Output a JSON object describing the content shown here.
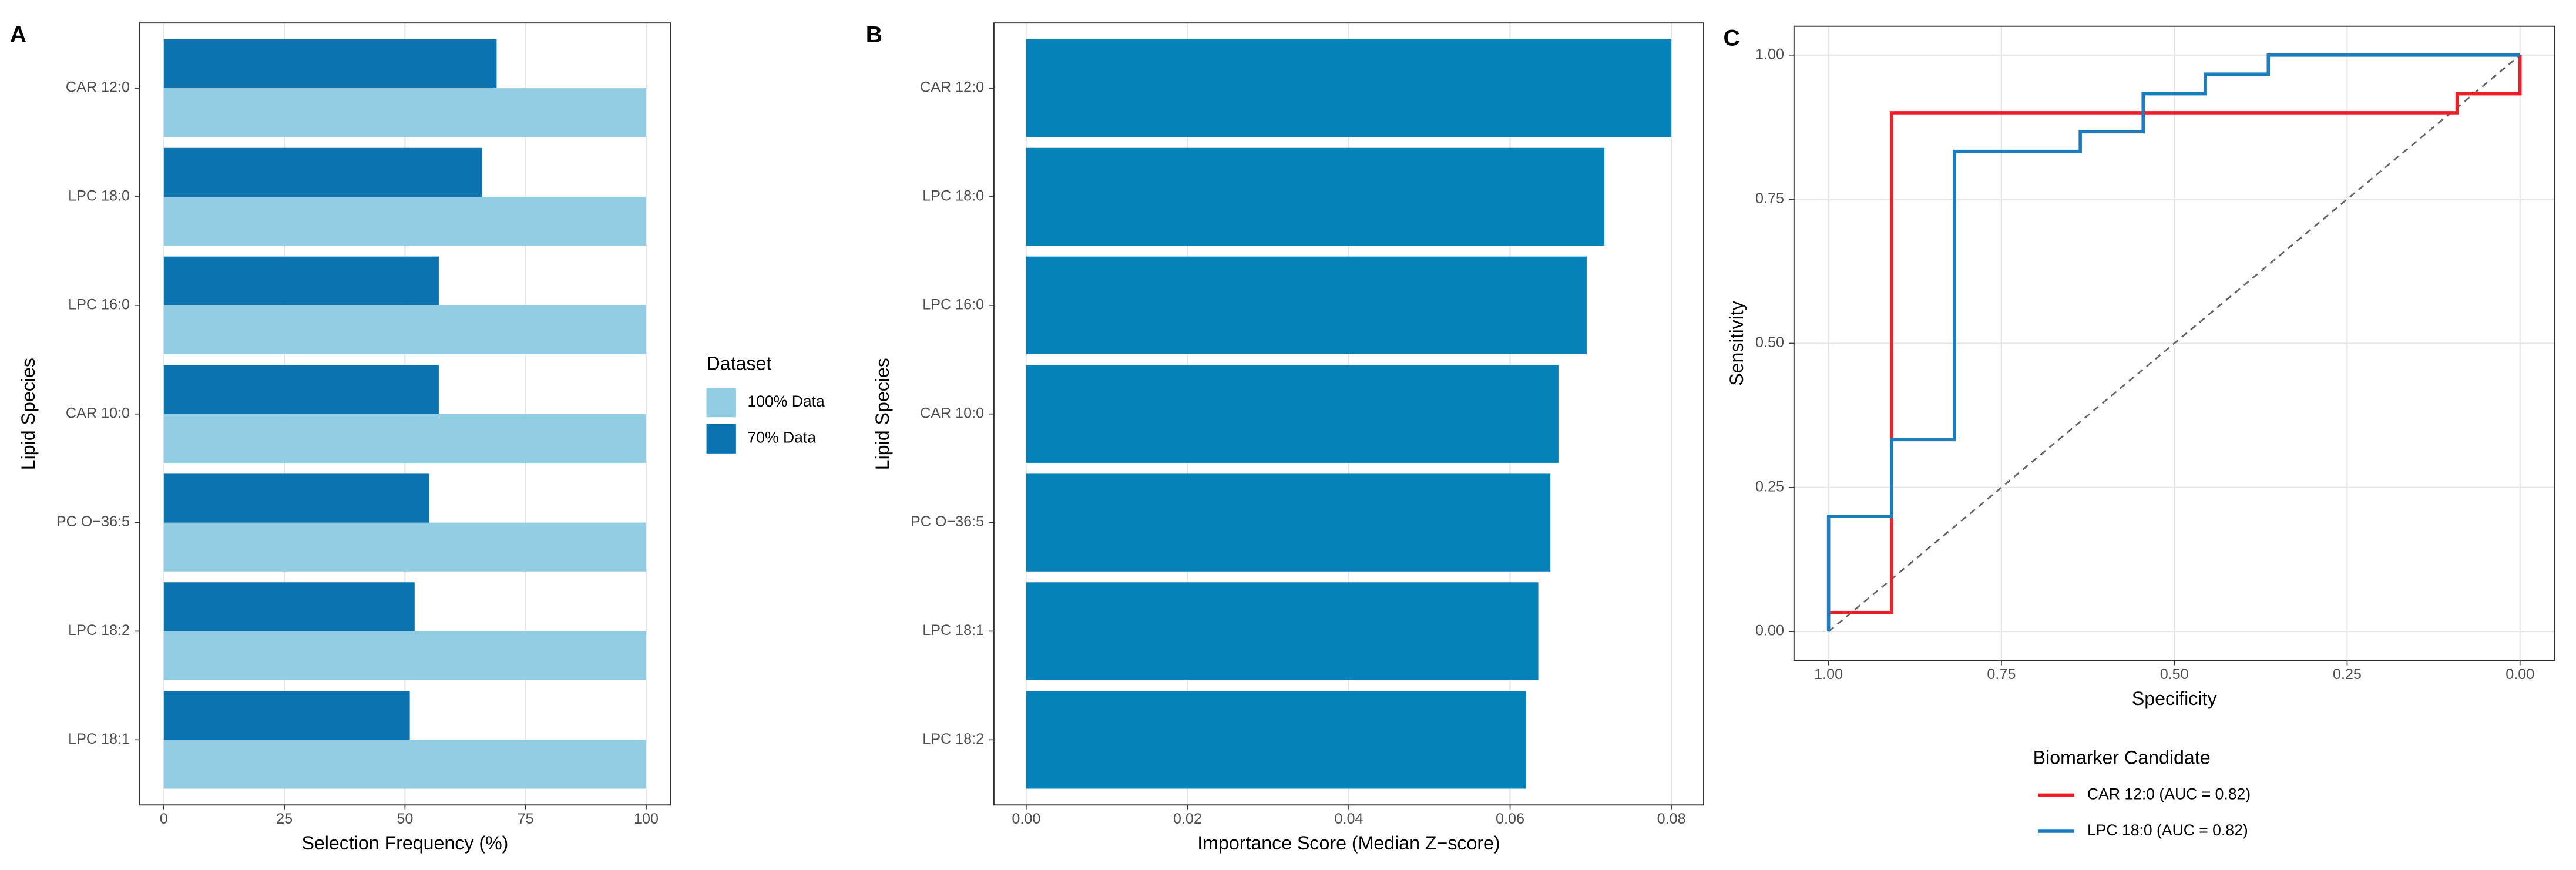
{
  "chart_data": [
    {
      "type": "bar",
      "orientation": "horizontal",
      "panel_label": "A",
      "xlabel": "Selection Frequency (%)",
      "ylabel": "Lipid Species",
      "categories": [
        "CAR 12:0",
        "LPC 18:0",
        "LPC 16:0",
        "CAR 10:0",
        "PC O−36:5",
        "LPC 18:2",
        "LPC 18:1"
      ],
      "series": [
        {
          "name": "100% Data",
          "color": "#92cde3",
          "values": [
            100,
            100,
            100,
            100,
            100,
            100,
            100
          ]
        },
        {
          "name": "70% Data",
          "color": "#0b73b0",
          "values": [
            69,
            66,
            57,
            57,
            55,
            52,
            51
          ]
        }
      ],
      "legend_title": "Dataset",
      "legend_position": "right",
      "xlim": [
        -5,
        105
      ],
      "xticks": [
        0,
        25,
        50,
        75,
        100
      ],
      "grid": true
    },
    {
      "type": "bar",
      "orientation": "horizontal",
      "panel_label": "B",
      "xlabel": "Importance Score (Median Z−score)",
      "ylabel": "Lipid Species",
      "categories": [
        "CAR 12:0",
        "LPC 18:0",
        "LPC 16:0",
        "CAR 10:0",
        "PC O−36:5",
        "LPC 18:1",
        "LPC 18:2"
      ],
      "values": [
        0.08,
        0.0717,
        0.0695,
        0.066,
        0.065,
        0.0635,
        0.062
      ],
      "color": "#0582b8",
      "xlim": [
        -0.004,
        0.084
      ],
      "xticks": [
        {
          "value": 0,
          "label": "0.00"
        },
        0.02,
        0.04,
        0.06,
        0.08
      ],
      "grid": true
    },
    {
      "type": "line",
      "panel_label": "C",
      "xlabel": "Specificity",
      "ylabel": "Sensitivity",
      "series": [
        {
          "name": "CAR 12:0 (AUC = 0.82)",
          "color": "#ee2027",
          "x": [
            1,
            0.909,
            0.909,
            0.091,
            0.091,
            0,
            0
          ],
          "values": [
            0.033,
            0.033,
            0.9,
            0.9,
            0.933,
            0.933,
            1
          ]
        },
        {
          "name": "LPC 18:0 (AUC = 0.82)",
          "color": "#1b7cc0",
          "x": [
            1,
            1,
            0.909,
            0.909,
            0.818,
            0.818,
            0.636,
            0.636,
            0.545,
            0.545,
            0.455,
            0.455,
            0.364,
            0.364,
            0
          ],
          "values": [
            0,
            0.2,
            0.2,
            0.333,
            0.333,
            0.833,
            0.833,
            0.867,
            0.867,
            0.933,
            0.933,
            0.967,
            0.967,
            1,
            1
          ]
        }
      ],
      "legend_title": "Biomarker Candidate",
      "legend_position": "bottom",
      "reference_line": true,
      "xlim": [
        1.05,
        -0.05
      ],
      "xticks": [
        {
          "value": 1,
          "label": "1.00"
        },
        {
          "value": 0.75,
          "label": "0.75"
        },
        {
          "value": 0.5,
          "label": "0.50"
        },
        {
          "value": 0.25,
          "label": "0.25"
        },
        {
          "value": 0,
          "label": "0.00"
        }
      ],
      "ylim": [
        -0.05,
        1.05
      ],
      "yticks": [
        {
          "value": 0,
          "label": "0.00"
        },
        {
          "value": 0.25,
          "label": "0.25"
        },
        {
          "value": 0.5,
          "label": "0.50"
        },
        {
          "value": 0.75,
          "label": "0.75"
        },
        {
          "value": 1,
          "label": "1.00"
        }
      ],
      "grid": true
    }
  ]
}
